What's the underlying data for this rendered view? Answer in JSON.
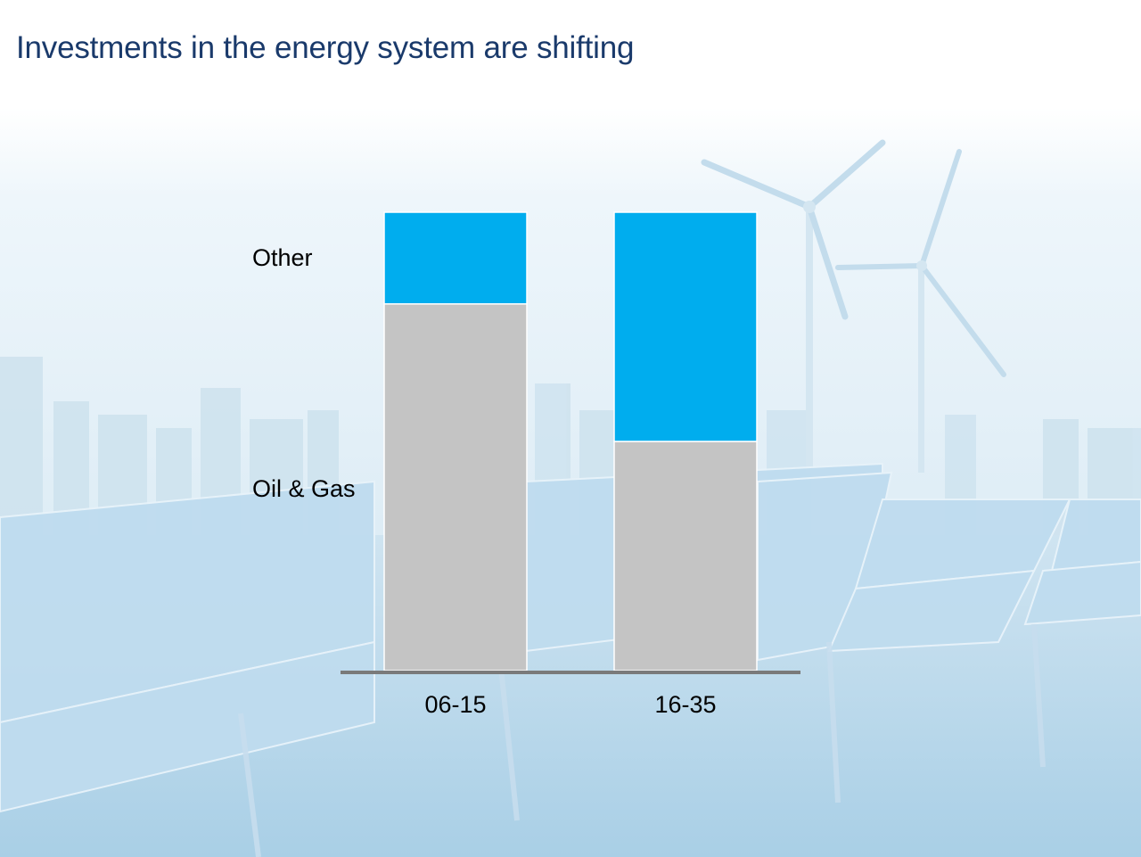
{
  "slide": {
    "title": "Investments in the energy system are shifting"
  },
  "background": {
    "description_icons": [
      "wind-turbine-icon",
      "solar-panel-icon",
      "city-skyline-icon"
    ]
  },
  "chart_data": {
    "type": "bar",
    "stacked": true,
    "normalized": true,
    "title": "",
    "xlabel": "",
    "ylabel": "",
    "categories": [
      "06-15",
      "16-35"
    ],
    "series": [
      {
        "name": "Oil & Gas",
        "values": [
          80,
          50
        ],
        "color": "#c4c4c4"
      },
      {
        "name": "Other",
        "values": [
          20,
          50
        ],
        "color": "#00adee"
      }
    ],
    "ylim": [
      0,
      100
    ],
    "grid": false,
    "legend": "left, inline labels"
  }
}
